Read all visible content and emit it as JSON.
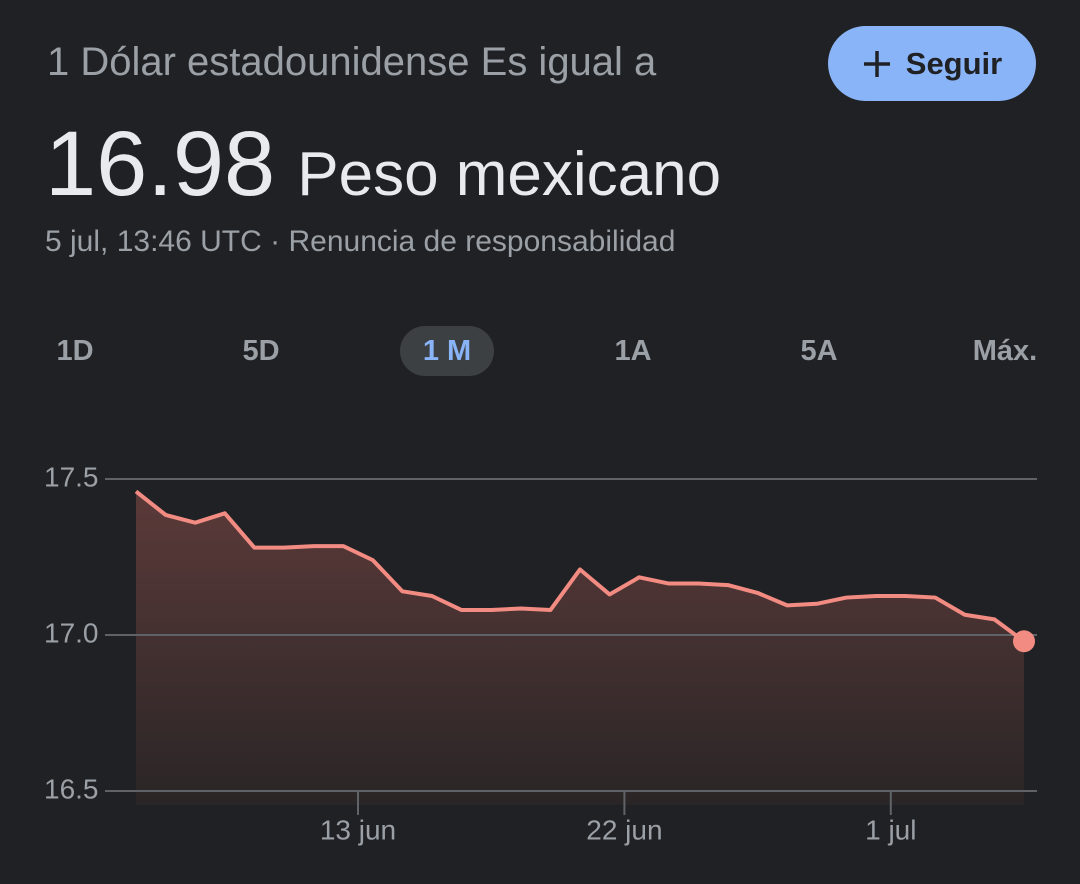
{
  "header": {
    "title": "1 Dólar estadounidense Es igual a",
    "value": "16.98",
    "currency": "Peso mexicano",
    "timestamp": "5 jul, 13:46 UTC",
    "separator": "·",
    "disclaimer": "Renuncia de responsabilidad",
    "follow_button": "Seguir"
  },
  "tabs": [
    "1D",
    "5D",
    "1 M",
    "1A",
    "5A",
    "Máx."
  ],
  "active_tab": "1 M",
  "chart_data": {
    "type": "line",
    "x": [
      "5 jun",
      "6 jun",
      "7 jun",
      "8 jun",
      "9 jun",
      "10 jun",
      "11 jun",
      "12 jun",
      "13 jun",
      "14 jun",
      "15 jun",
      "16 jun",
      "17 jun",
      "18 jun",
      "19 jun",
      "20 jun",
      "21 jun",
      "22 jun",
      "23 jun",
      "24 jun",
      "25 jun",
      "26 jun",
      "27 jun",
      "28 jun",
      "29 jun",
      "30 jun",
      "1 jul",
      "2 jul",
      "3 jul",
      "4 jul",
      "5 jul"
    ],
    "values": [
      17.46,
      17.385,
      17.36,
      17.39,
      17.28,
      17.28,
      17.285,
      17.285,
      17.24,
      17.14,
      17.125,
      17.08,
      17.08,
      17.085,
      17.08,
      17.21,
      17.13,
      17.185,
      17.165,
      17.165,
      17.16,
      17.135,
      17.095,
      17.1,
      17.12,
      17.125,
      17.125,
      17.12,
      17.065,
      17.05,
      16.98
    ],
    "color": "#f28b82",
    "ylim": [
      16.5,
      17.5
    ],
    "yticks": [
      16.5,
      {
        "value": 17,
        "label": "17.0"
      },
      17.5
    ],
    "xticks": [
      "13 jun",
      "22 jun",
      "1 jul"
    ],
    "grid": true
  }
}
